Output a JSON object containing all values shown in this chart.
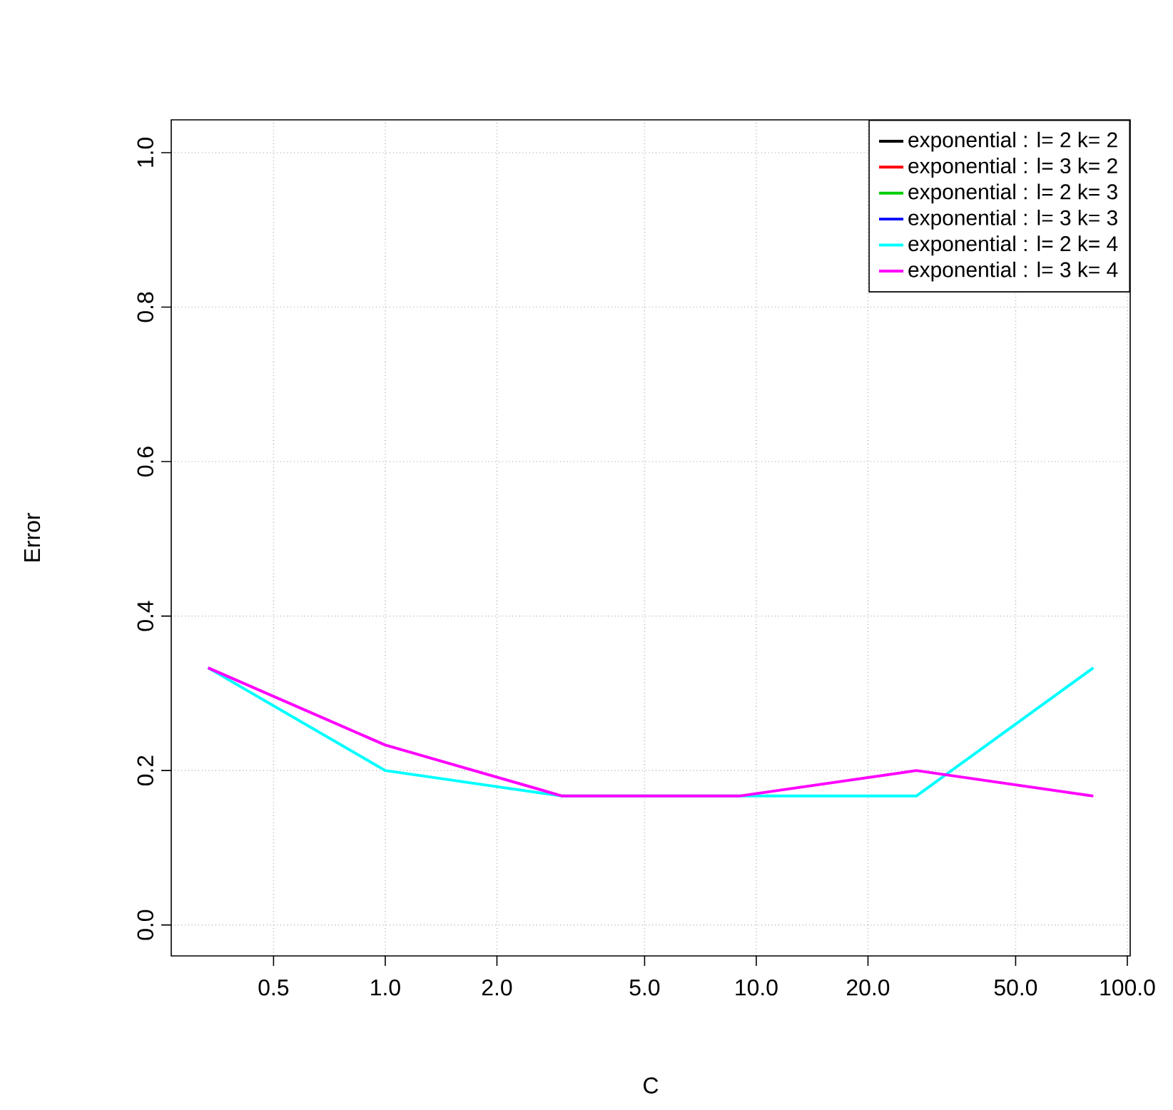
{
  "chart_data": {
    "type": "line",
    "xlabel": "C",
    "ylabel": "Error",
    "log": "x",
    "grid": true,
    "legend": "top right",
    "marker": "none",
    "line_style": "solid",
    "x": [
      0.333,
      1,
      3,
      9,
      27,
      81
    ],
    "xlim": [
      0.265,
      101.8
    ],
    "ylim": [
      -0.04,
      1.0425
    ],
    "xticks": [
      {
        "value": 0.5,
        "label": "0.5"
      },
      {
        "value": 1,
        "label": "1.0"
      },
      {
        "value": 2,
        "label": "2.0"
      },
      {
        "value": 5,
        "label": "5.0"
      },
      {
        "value": 10,
        "label": "10.0"
      },
      {
        "value": 20,
        "label": "20.0"
      },
      {
        "value": 50,
        "label": "50.0"
      },
      {
        "value": 100,
        "label": "100.0"
      }
    ],
    "yticks": [
      {
        "value": 0,
        "label": "0.0"
      },
      {
        "value": 0.2,
        "label": "0.2"
      },
      {
        "value": 0.4,
        "label": "0.4"
      },
      {
        "value": 0.6,
        "label": "0.6"
      },
      {
        "value": 0.8,
        "label": "0.8"
      },
      {
        "value": 1,
        "label": "1.0"
      }
    ],
    "series": [
      {
        "name": "exponential : l= 2 k= 2",
        "color": "#000000",
        "values": [
          null,
          null,
          null,
          null,
          null,
          null
        ]
      },
      {
        "name": "exponential : l= 3 k= 2",
        "color": "#ff0000",
        "values": [
          null,
          null,
          null,
          null,
          null,
          null
        ]
      },
      {
        "name": "exponential : l= 2 k= 3",
        "color": "#00cd00",
        "values": [
          null,
          null,
          null,
          null,
          null,
          null
        ]
      },
      {
        "name": "exponential : l= 3 k= 3",
        "color": "#0000ff",
        "values": [
          null,
          null,
          null,
          null,
          null,
          null
        ]
      },
      {
        "name": "exponential : l= 2 k= 4",
        "color": "#00ffff",
        "values": [
          0.333,
          0.2,
          0.167,
          0.167,
          0.167,
          0.333
        ]
      },
      {
        "name": "exponential : l= 3 k= 4",
        "color": "#ff00ff",
        "values": [
          0.333,
          0.233,
          0.167,
          0.167,
          0.2,
          0.167
        ]
      }
    ]
  }
}
